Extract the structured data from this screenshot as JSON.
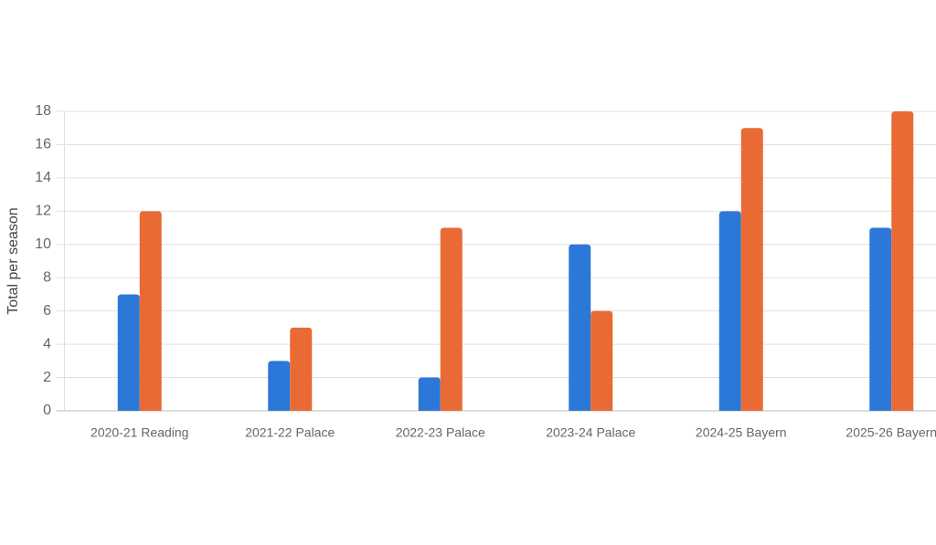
{
  "chart_data": {
    "type": "bar",
    "y_label": "Total per season",
    "categories": [
      "2020-21 Reading",
      "2021-22 Palace",
      "2022-23 Palace",
      "2023-24 Palace",
      "2024-25 Bayern",
      "2025-26 Bayern"
    ],
    "series": [
      {
        "color": "#2b78d8",
        "values": [
          7,
          3,
          2,
          10,
          12,
          11
        ]
      },
      {
        "color": "#e96a35",
        "values": [
          12,
          5,
          11,
          6,
          17,
          18
        ]
      }
    ],
    "ylim": [
      0,
      18
    ],
    "yticks": [
      0,
      2,
      4,
      6,
      8,
      10,
      12,
      14,
      16,
      18
    ],
    "grid": true
  }
}
